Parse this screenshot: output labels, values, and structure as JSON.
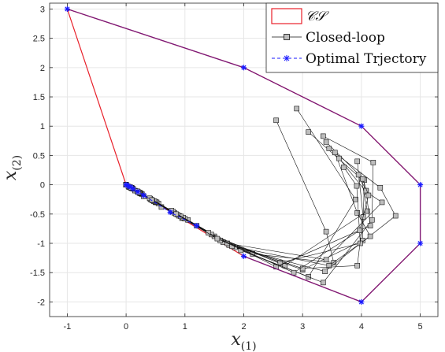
{
  "chart_data": {
    "type": "line",
    "xlabel": "x",
    "xlabel_sub": "(1)",
    "ylabel": "x",
    "ylabel_sub": "(2)",
    "xlim": [
      -1.3,
      5.3
    ],
    "ylim": [
      -2.25,
      3.1
    ],
    "xticks": [
      -1,
      0,
      1,
      2,
      3,
      4,
      5
    ],
    "yticks": [
      -2,
      -1.5,
      -1,
      -0.5,
      0,
      0.5,
      1,
      1.5,
      2,
      2.5,
      3
    ],
    "xtick_labels": [
      "-1",
      "0",
      "1",
      "2",
      "3",
      "4",
      "5"
    ],
    "ytick_labels": [
      "-2",
      "-1.5",
      "-1",
      "-0.5",
      "0",
      "0.5",
      "1",
      "1.5",
      "2",
      "2.5",
      "3"
    ],
    "grid": true,
    "legend_position": "top-right",
    "colors": {
      "cs": "#e8202a",
      "closed_loop": "#111111",
      "optimal": "#1a1aff",
      "outer_boundary": "#7a1a7a",
      "marker_fill": "#bdbdbd"
    },
    "series": [
      {
        "name": "CS",
        "role": "cs",
        "style": "polygon",
        "x": [
          -1,
          2,
          4,
          5,
          5,
          4,
          2,
          0,
          -1
        ],
        "y": [
          3,
          2,
          1,
          0,
          -1,
          -2,
          -1.22,
          0,
          3
        ]
      },
      {
        "name": "Closed-loop",
        "role": "closed_loop",
        "style": "trajectories",
        "trajectories": [
          {
            "x": [
              2.55,
              3.4,
              3.53,
              2.15,
              1.2,
              0.6,
              0.3,
              0.15,
              0.05,
              0.0
            ],
            "y": [
              1.1,
              -0.8,
              -1.33,
              -1.18,
              -0.7,
              -0.38,
              -0.2,
              -0.1,
              -0.04,
              0.0
            ]
          },
          {
            "x": [
              2.9,
              3.9,
              3.1,
              1.75,
              0.95,
              0.5,
              0.25,
              0.12,
              0.04,
              0.0
            ],
            "y": [
              1.3,
              -0.25,
              -1.57,
              -1.03,
              -0.57,
              -0.3,
              -0.15,
              -0.07,
              -0.03,
              0.0
            ]
          },
          {
            "x": [
              3.1,
              4.0,
              4.1,
              2.7,
              1.5,
              0.82,
              0.42,
              0.2,
              0.08,
              0.0
            ],
            "y": [
              0.9,
              0.1,
              -0.45,
              -1.38,
              -0.88,
              -0.48,
              -0.25,
              -0.12,
              -0.05,
              0.0
            ]
          },
          {
            "x": [
              3.35,
              4.2,
              4.18,
              3.35,
              1.95,
              1.05,
              0.55,
              0.27,
              0.1,
              0.0
            ],
            "y": [
              0.83,
              0.38,
              -0.6,
              -1.67,
              -1.12,
              -0.6,
              -0.32,
              -0.16,
              -0.06,
              0.0
            ]
          },
          {
            "x": [
              3.4,
              4.05,
              4.02,
              3.0,
              1.65,
              0.9,
              0.47,
              0.23,
              0.09,
              0.0
            ],
            "y": [
              0.73,
              0.08,
              -0.95,
              -1.45,
              -0.98,
              -0.53,
              -0.28,
              -0.14,
              -0.05,
              0.0
            ]
          },
          {
            "x": [
              3.45,
              4.32,
              4.58,
              3.38,
              1.85,
              1.0,
              0.52,
              0.25,
              0.1,
              0.0
            ],
            "y": [
              0.62,
              -0.05,
              -0.53,
              -1.48,
              -1.07,
              -0.58,
              -0.3,
              -0.15,
              -0.06,
              0.0
            ]
          },
          {
            "x": [
              3.55,
              3.93,
              4.15,
              3.45,
              1.8,
              0.97,
              0.5,
              0.24,
              0.09,
              0.0
            ],
            "y": [
              0.55,
              -0.48,
              -0.88,
              -1.38,
              -1.05,
              -0.56,
              -0.29,
              -0.14,
              -0.05,
              0.0
            ]
          },
          {
            "x": [
              3.62,
              4.08,
              4.35,
              3.4,
              1.72,
              0.93,
              0.48,
              0.23,
              0.09,
              0.0
            ],
            "y": [
              0.45,
              -0.12,
              -0.3,
              -1.28,
              -1.0,
              -0.54,
              -0.28,
              -0.14,
              -0.05,
              0.0
            ]
          },
          {
            "x": [
              3.7,
              3.92,
              3.98,
              2.62,
              1.45,
              0.8,
              0.41,
              0.2,
              0.08,
              0.0
            ],
            "y": [
              0.3,
              -0.02,
              -1.0,
              -1.33,
              -0.85,
              -0.46,
              -0.24,
              -0.12,
              -0.05,
              0.0
            ]
          },
          {
            "x": [
              3.93,
              4.03,
              3.93,
              3.0,
              1.6,
              0.87,
              0.45,
              0.22,
              0.09,
              0.0
            ],
            "y": [
              0.4,
              -0.55,
              -1.38,
              -1.43,
              -0.95,
              -0.51,
              -0.27,
              -0.13,
              -0.05,
              0.0
            ]
          },
          {
            "x": [
              3.95,
              4.08,
              4.15,
              2.55,
              1.4,
              0.77,
              0.4,
              0.19,
              0.07,
              0.0
            ],
            "y": [
              0.17,
              -0.1,
              -0.7,
              -1.4,
              -0.82,
              -0.44,
              -0.23,
              -0.11,
              -0.04,
              0.0
            ]
          },
          {
            "x": [
              4.02,
              4.12,
              3.97,
              2.85,
              1.55,
              0.85,
              0.44,
              0.21,
              0.08,
              0.0
            ],
            "y": [
              0.1,
              -0.18,
              -0.78,
              -1.5,
              -0.92,
              -0.5,
              -0.26,
              -0.13,
              -0.05,
              0.0
            ]
          }
        ]
      },
      {
        "name": "Optimal Trjectory",
        "role": "optimal",
        "style": "dashed-star",
        "x": [
          0,
          0.02,
          0.05,
          0.08,
          0.12,
          0.2,
          0.3,
          0.75,
          1.2
        ],
        "y": [
          0.0,
          -0.01,
          -0.03,
          -0.04,
          -0.07,
          -0.12,
          -0.18,
          -0.47,
          -0.7
        ]
      },
      {
        "name": "",
        "role": "outer_boundary",
        "style": "boundary",
        "x": [
          -1,
          2,
          4,
          5,
          5,
          4,
          2
        ],
        "y": [
          3,
          2,
          1,
          0,
          -1,
          -2,
          -1.22
        ],
        "vertex_markers_x": [
          -1,
          2,
          4,
          5,
          5,
          4,
          2
        ],
        "vertex_markers_y": [
          3,
          2,
          1,
          0,
          -1,
          -2,
          -1.22
        ]
      }
    ],
    "legend": {
      "cs_label": "𝒞𝒮",
      "closed_loop_label": "Closed-loop",
      "optimal_label": "Optimal Trjectory"
    }
  }
}
